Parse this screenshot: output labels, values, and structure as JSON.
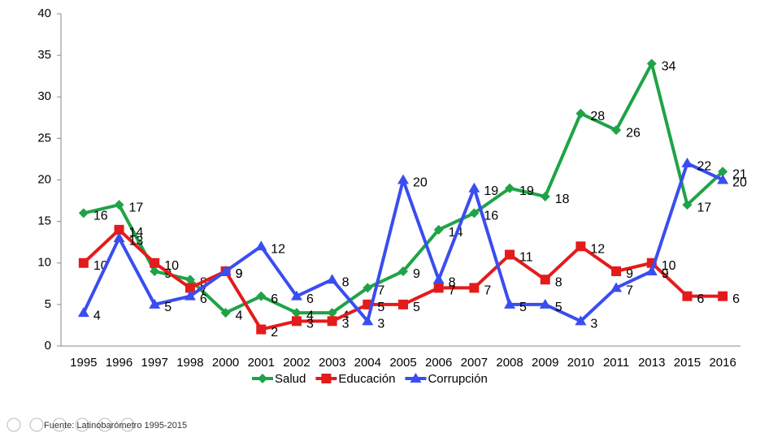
{
  "chart_data": {
    "type": "line",
    "categories": [
      "1995",
      "1996",
      "1997",
      "1998",
      "2000",
      "2001",
      "2002",
      "2003",
      "2004",
      "2005",
      "2006",
      "2007",
      "2008",
      "2009",
      "2010",
      "2011",
      "2013",
      "2015",
      "2016"
    ],
    "series": [
      {
        "name": "Salud",
        "color": "#1fa347",
        "marker": "diamond",
        "values": [
          16,
          17,
          9,
          8,
          4,
          6,
          4,
          4,
          7,
          9,
          14,
          16,
          19,
          18,
          28,
          26,
          34,
          17,
          21
        ]
      },
      {
        "name": "Educación",
        "color": "#e41b1b",
        "marker": "square",
        "values": [
          10,
          14,
          10,
          7,
          9,
          2,
          3,
          3,
          5,
          5,
          7,
          7,
          11,
          8,
          12,
          9,
          10,
          6,
          6
        ]
      },
      {
        "name": "Corrupción",
        "color": "#3a4df0",
        "marker": "triangle",
        "values": [
          4,
          13,
          5,
          6,
          9,
          12,
          6,
          8,
          3,
          20,
          8,
          19,
          5,
          5,
          3,
          7,
          9,
          22,
          20
        ]
      }
    ],
    "ylim": [
      0,
      40
    ],
    "yticks": [
      0,
      5,
      10,
      15,
      20,
      25,
      30,
      35,
      40
    ],
    "grid": false,
    "legend": "bottom",
    "source": "Fuente: Latinobarómetro 1995-2015"
  }
}
